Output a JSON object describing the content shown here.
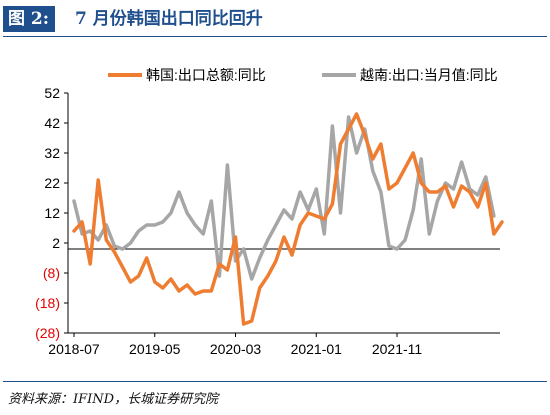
{
  "header": {
    "figure_label": "图 2:",
    "title": "7 月份韩国出口同比回升"
  },
  "source": "资料来源：IFIND，长城证券研究院",
  "chart_data": {
    "type": "line",
    "title": "7 月份韩国出口同比回升",
    "xlabel": "",
    "ylabel": "",
    "ylim": [
      -28,
      52
    ],
    "y_ticks": [
      52,
      42,
      32,
      22,
      12,
      2,
      -8,
      -18,
      -28
    ],
    "y_tick_labels": [
      "52",
      "42",
      "32",
      "22",
      "12",
      "2",
      "(8)",
      "(18)",
      "(28)"
    ],
    "x_tick_labels": [
      {
        "label": "2018-07",
        "index": 0
      },
      {
        "label": "2019-05",
        "index": 10
      },
      {
        "label": "2020-03",
        "index": 20
      },
      {
        "label": "2021-01",
        "index": 30
      },
      {
        "label": "2021-11",
        "index": 40
      }
    ],
    "baseline": 0,
    "legend_position": "top",
    "grid": false,
    "colors": {
      "korea": "#ef7d31",
      "vietnam": "#a6a6a6",
      "negative_ticks": "#e60000"
    },
    "series": [
      {
        "name": "韩国:出口总额:同比",
        "color": "#ef7d31",
        "values": [
          6,
          9,
          -5,
          23,
          3,
          -1,
          -6,
          -11,
          -9,
          -3,
          -11,
          -13,
          -10,
          -14,
          -12,
          -15,
          -14,
          -14,
          -5,
          -7,
          4,
          -25,
          -24,
          -13,
          -9,
          -4,
          4,
          -2,
          8,
          12,
          11,
          10,
          15,
          35,
          40,
          45,
          38,
          30,
          35,
          20,
          22,
          27,
          32,
          22,
          19,
          19,
          21,
          14,
          21,
          19,
          14,
          22,
          5,
          9
        ]
      },
      {
        "name": "越南:出口:当月值:同比",
        "color": "#a6a6a6",
        "values": [
          16,
          5,
          6,
          3,
          8,
          1,
          0,
          2,
          6,
          8,
          8,
          9,
          12,
          19,
          12,
          8,
          5,
          16,
          -9,
          28,
          -4,
          0,
          -10,
          -3,
          3,
          8,
          13,
          10,
          19,
          13,
          20,
          5,
          41,
          12,
          44,
          32,
          40,
          26,
          19,
          1,
          0,
          3,
          13,
          30,
          5,
          16,
          22,
          20,
          29,
          20,
          18,
          24,
          11
        ]
      }
    ]
  }
}
